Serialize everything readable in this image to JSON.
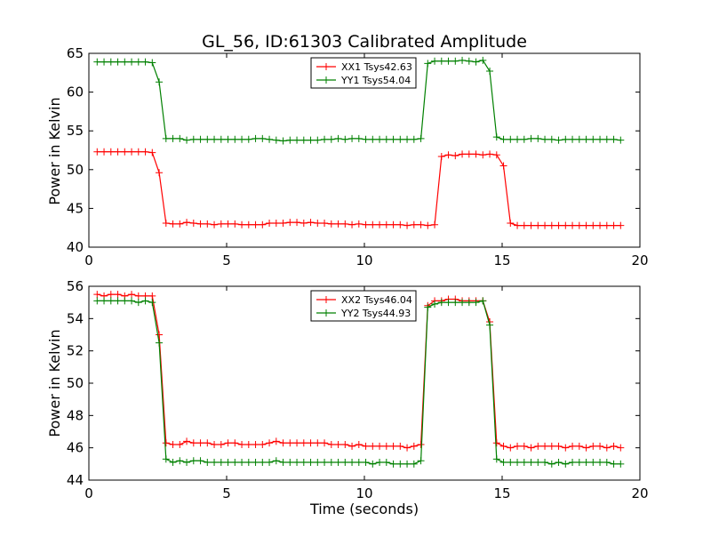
{
  "chart_data": [
    {
      "type": "line",
      "title": "GL_56, ID:61303 Calibrated Amplitude",
      "xlabel": "",
      "ylabel": "Power in Kelvin",
      "xlim": [
        0,
        20
      ],
      "ylim": [
        40,
        65
      ],
      "xticks": [
        "0",
        "5",
        "10",
        "15",
        "20"
      ],
      "yticks": [
        "40",
        "45",
        "50",
        "55",
        "60",
        "65"
      ],
      "grid": false,
      "legend_position": "top-center",
      "x": [
        0.3,
        0.55,
        0.8,
        1.05,
        1.3,
        1.55,
        1.8,
        2.05,
        2.3,
        2.55,
        2.8,
        3.05,
        3.3,
        3.55,
        3.8,
        4.05,
        4.3,
        4.55,
        4.8,
        5.05,
        5.3,
        5.55,
        5.8,
        6.05,
        6.3,
        6.55,
        6.8,
        7.05,
        7.3,
        7.55,
        7.8,
        8.05,
        8.3,
        8.55,
        8.8,
        9.05,
        9.3,
        9.55,
        9.8,
        10.05,
        10.3,
        10.55,
        10.8,
        11.05,
        11.3,
        11.55,
        11.8,
        12.05,
        12.3,
        12.55,
        12.8,
        13.05,
        13.3,
        13.55,
        13.8,
        14.05,
        14.3,
        14.55,
        14.8,
        15.05,
        15.3,
        15.55,
        15.8,
        16.05,
        16.3,
        16.55,
        16.8,
        17.05,
        17.3,
        17.55,
        17.8,
        18.05,
        18.3,
        18.55,
        18.8,
        19.05,
        19.3
      ],
      "series": [
        {
          "name": "XX1 Tsys42.63",
          "color": "#ff0000",
          "values": [
            52.3,
            52.3,
            52.3,
            52.3,
            52.3,
            52.3,
            52.3,
            52.3,
            52.2,
            49.6,
            43.1,
            43.0,
            43.0,
            43.2,
            43.1,
            43.0,
            43.0,
            42.9,
            43.0,
            43.0,
            43.0,
            42.9,
            42.9,
            42.9,
            42.9,
            43.1,
            43.1,
            43.1,
            43.2,
            43.2,
            43.1,
            43.2,
            43.1,
            43.1,
            43.0,
            43.0,
            43.0,
            42.9,
            43.0,
            42.9,
            42.9,
            42.9,
            42.9,
            42.9,
            42.9,
            42.8,
            42.9,
            42.9,
            42.8,
            42.9,
            51.7,
            51.9,
            51.8,
            52.0,
            52.0,
            52.0,
            51.9,
            52.0,
            51.9,
            50.5,
            43.1,
            42.8,
            42.8,
            42.8,
            42.8,
            42.8,
            42.8,
            42.8,
            42.8,
            42.8,
            42.8,
            42.8,
            42.8,
            42.8,
            42.8,
            42.8,
            42.8
          ]
        },
        {
          "name": "YY1 Tsys54.04",
          "color": "#008000",
          "values": [
            63.9,
            63.9,
            63.9,
            63.9,
            63.9,
            63.9,
            63.9,
            63.9,
            63.8,
            61.3,
            54.0,
            54.0,
            54.0,
            53.8,
            53.9,
            53.9,
            53.9,
            53.9,
            53.9,
            53.9,
            53.9,
            53.9,
            53.9,
            54.0,
            54.0,
            53.9,
            53.8,
            53.7,
            53.8,
            53.8,
            53.8,
            53.8,
            53.8,
            53.9,
            53.9,
            54.0,
            53.9,
            54.0,
            54.0,
            53.9,
            53.9,
            53.9,
            53.9,
            53.9,
            53.9,
            53.9,
            53.9,
            54.0,
            63.7,
            64.0,
            64.0,
            64.0,
            64.0,
            64.1,
            64.0,
            63.9,
            64.1,
            62.7,
            54.2,
            53.9,
            53.9,
            53.9,
            53.9,
            54.0,
            54.0,
            53.9,
            53.9,
            53.8,
            53.9,
            53.9,
            53.9,
            53.9,
            53.9,
            53.9,
            53.9,
            53.9,
            53.8
          ]
        }
      ]
    },
    {
      "type": "line",
      "title": "",
      "xlabel": "Time (seconds)",
      "ylabel": "Power in Kelvin",
      "xlim": [
        0,
        20
      ],
      "ylim": [
        44,
        56
      ],
      "xticks": [
        "0",
        "5",
        "10",
        "15",
        "20"
      ],
      "yticks": [
        "44",
        "46",
        "48",
        "50",
        "52",
        "54",
        "56"
      ],
      "grid": false,
      "legend_position": "top-center",
      "x": [
        0.3,
        0.55,
        0.8,
        1.05,
        1.3,
        1.55,
        1.8,
        2.05,
        2.3,
        2.55,
        2.8,
        3.05,
        3.3,
        3.55,
        3.8,
        4.05,
        4.3,
        4.55,
        4.8,
        5.05,
        5.3,
        5.55,
        5.8,
        6.05,
        6.3,
        6.55,
        6.8,
        7.05,
        7.3,
        7.55,
        7.8,
        8.05,
        8.3,
        8.55,
        8.8,
        9.05,
        9.3,
        9.55,
        9.8,
        10.05,
        10.3,
        10.55,
        10.8,
        11.05,
        11.3,
        11.55,
        11.8,
        12.05,
        12.3,
        12.55,
        12.8,
        13.05,
        13.3,
        13.55,
        13.8,
        14.05,
        14.3,
        14.55,
        14.8,
        15.05,
        15.3,
        15.55,
        15.8,
        16.05,
        16.3,
        16.55,
        16.8,
        17.05,
        17.3,
        17.55,
        17.8,
        18.05,
        18.3,
        18.55,
        18.8,
        19.05,
        19.3
      ],
      "series": [
        {
          "name": "XX2 Tsys46.04",
          "color": "#ff0000",
          "values": [
            55.5,
            55.4,
            55.5,
            55.5,
            55.4,
            55.5,
            55.4,
            55.4,
            55.4,
            53.0,
            46.3,
            46.2,
            46.2,
            46.4,
            46.3,
            46.3,
            46.3,
            46.2,
            46.2,
            46.3,
            46.3,
            46.2,
            46.2,
            46.2,
            46.2,
            46.3,
            46.4,
            46.3,
            46.3,
            46.3,
            46.3,
            46.3,
            46.3,
            46.3,
            46.2,
            46.2,
            46.2,
            46.1,
            46.2,
            46.1,
            46.1,
            46.1,
            46.1,
            46.1,
            46.1,
            46.0,
            46.1,
            46.2,
            54.8,
            55.1,
            55.1,
            55.2,
            55.2,
            55.1,
            55.1,
            55.1,
            55.1,
            53.8,
            46.3,
            46.1,
            46.0,
            46.1,
            46.1,
            46.0,
            46.1,
            46.1,
            46.1,
            46.1,
            46.0,
            46.1,
            46.1,
            46.0,
            46.1,
            46.1,
            46.0,
            46.1,
            46.0
          ]
        },
        {
          "name": "YY2 Tsys44.93",
          "color": "#008000",
          "values": [
            55.1,
            55.1,
            55.1,
            55.1,
            55.1,
            55.1,
            55.0,
            55.1,
            55.0,
            52.5,
            45.3,
            45.1,
            45.2,
            45.1,
            45.2,
            45.2,
            45.1,
            45.1,
            45.1,
            45.1,
            45.1,
            45.1,
            45.1,
            45.1,
            45.1,
            45.1,
            45.2,
            45.1,
            45.1,
            45.1,
            45.1,
            45.1,
            45.1,
            45.1,
            45.1,
            45.1,
            45.1,
            45.1,
            45.1,
            45.1,
            45.0,
            45.1,
            45.1,
            45.0,
            45.0,
            45.0,
            45.0,
            45.2,
            54.7,
            54.9,
            55.0,
            55.0,
            55.0,
            55.0,
            55.0,
            55.0,
            55.1,
            53.6,
            45.3,
            45.1,
            45.1,
            45.1,
            45.1,
            45.1,
            45.1,
            45.1,
            45.0,
            45.1,
            45.0,
            45.1,
            45.1,
            45.1,
            45.1,
            45.1,
            45.1,
            45.0,
            45.0
          ]
        }
      ]
    }
  ]
}
